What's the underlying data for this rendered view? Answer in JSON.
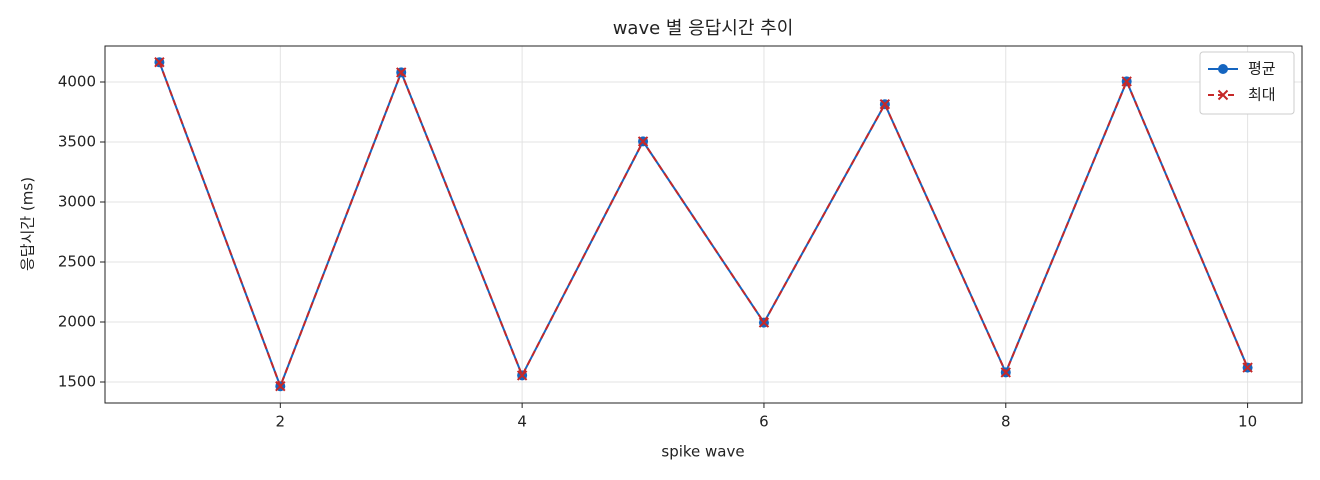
{
  "chart_data": {
    "type": "line",
    "title": "wave 별 응답시간 추이",
    "x_label": "spike wave",
    "y_label": "응답시간 (ms)",
    "x": [
      1,
      2,
      3,
      4,
      5,
      6,
      7,
      8,
      9,
      10
    ],
    "series": [
      {
        "name": "평균",
        "color": "#1565c0",
        "marker": "circle",
        "dash": false,
        "values": [
          4165,
          1465,
          4080,
          1555,
          3505,
          1995,
          3815,
          1580,
          4005,
          1620
        ]
      },
      {
        "name": "최대",
        "color": "#c62828",
        "marker": "x",
        "dash": true,
        "values": [
          4165,
          1465,
          4080,
          1555,
          3505,
          1995,
          3815,
          1580,
          4005,
          1620
        ]
      }
    ],
    "xlim": [
      0.55,
      10.45
    ],
    "xticks": [
      2,
      4,
      6,
      8,
      10
    ],
    "ylim": [
      1325,
      4300
    ],
    "yticks": [
      1500,
      2000,
      2500,
      3000,
      3500,
      4000
    ],
    "grid": true,
    "legend": "upper right"
  }
}
